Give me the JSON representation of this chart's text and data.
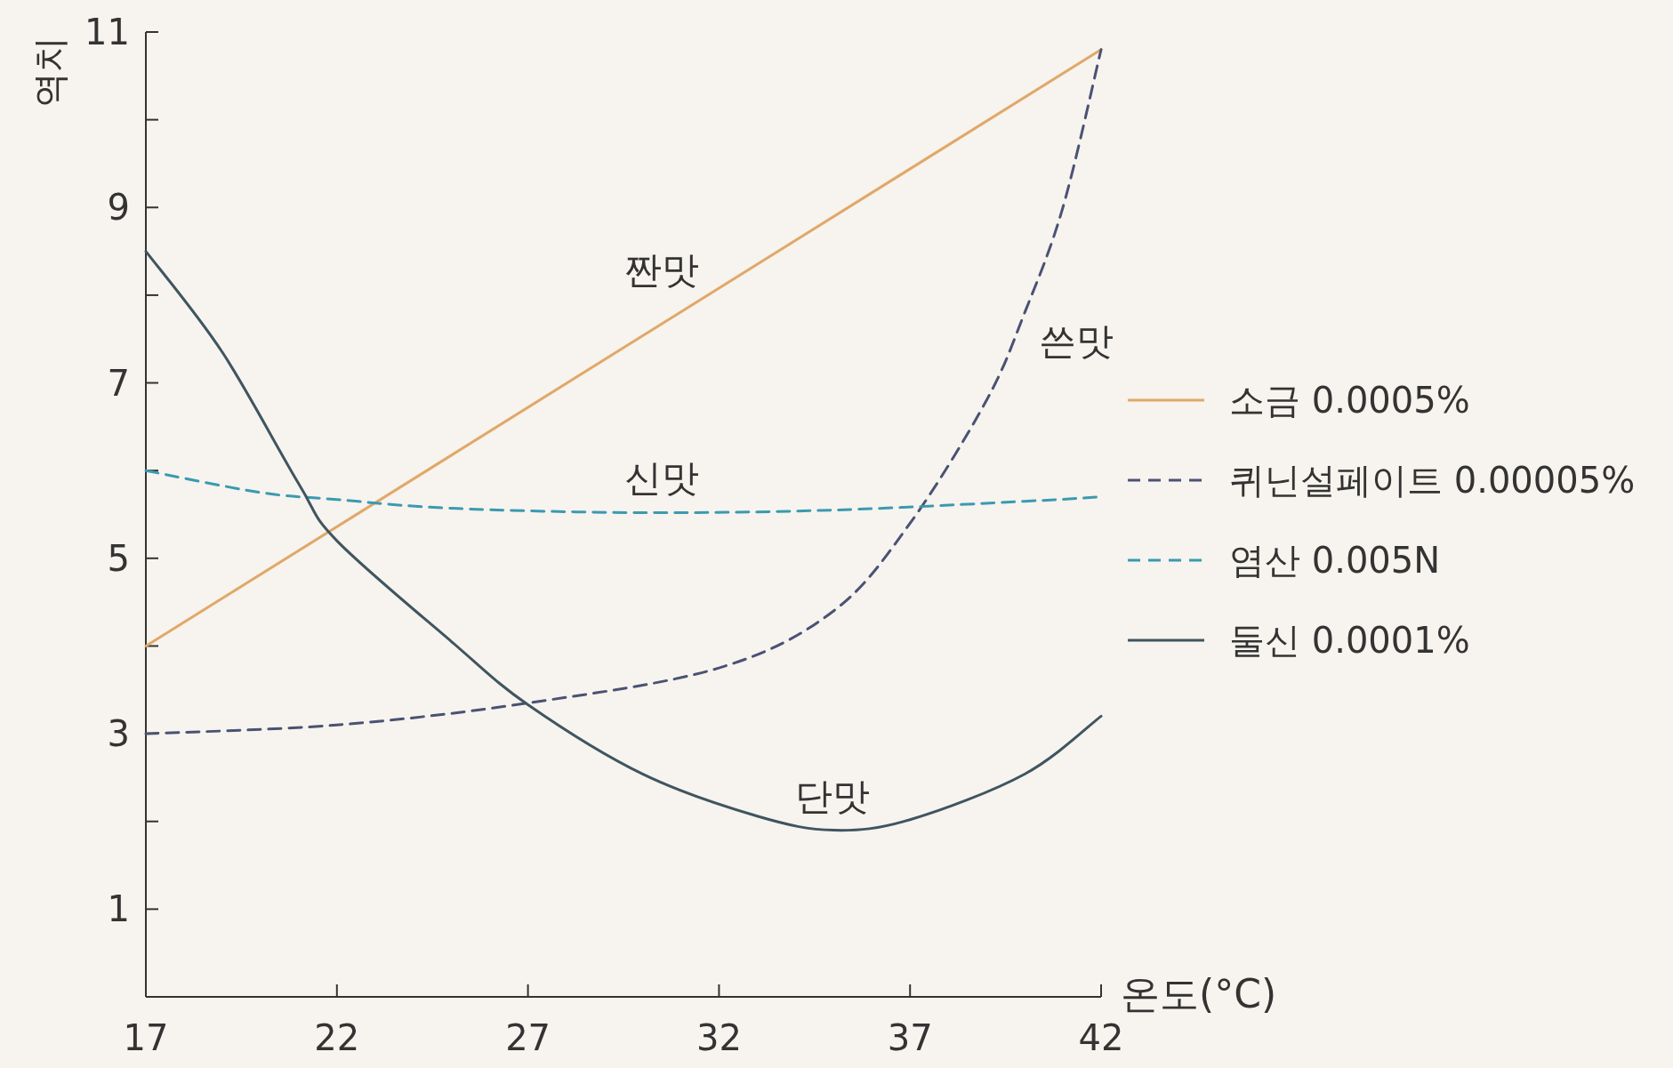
{
  "chart_data": {
    "type": "line",
    "xlabel": "온도(°C)",
    "ylabel": "역치",
    "xlim": [
      17,
      42
    ],
    "xticks": [
      17,
      22,
      27,
      32,
      37,
      42
    ],
    "ylim": [
      0,
      11
    ],
    "yticks": [
      1,
      {
        "value": 2,
        "label": null
      },
      3,
      {
        "value": 4,
        "label": null
      },
      5,
      {
        "value": 6,
        "label": null
      },
      7,
      {
        "value": 8,
        "label": null
      },
      9,
      {
        "value": 10,
        "label": null
      },
      11
    ],
    "legend": "right",
    "grid": false,
    "marker": "none",
    "series": [
      {
        "name": "소금 0.0005%",
        "color": "#e0a868",
        "line_style": "solid",
        "x": [
          17,
          42
        ],
        "values": [
          4.0,
          10.8
        ]
      },
      {
        "name": "퀴닌설페이트 0.00005%",
        "color": "#4a5274",
        "line_style": "dashed",
        "x": [
          17,
          22,
          27,
          32,
          35,
          37,
          39,
          40,
          41,
          42
        ],
        "values": [
          3.0,
          3.1,
          3.35,
          3.75,
          4.4,
          5.4,
          6.8,
          7.8,
          9.0,
          10.8
        ]
      },
      {
        "name": "염산 0.005N",
        "color": "#3a9ab0",
        "line_style": "dashed",
        "x": [
          17,
          20,
          22,
          25,
          30,
          35,
          40,
          42
        ],
        "values": [
          6.0,
          5.75,
          5.67,
          5.57,
          5.52,
          5.55,
          5.65,
          5.7
        ]
      },
      {
        "name": "둘신 0.0001%",
        "color": "#3f5560",
        "line_style": "solid",
        "x": [
          17,
          19,
          21,
          22,
          25,
          27,
          30,
          33,
          35,
          37,
          40,
          42
        ],
        "values": [
          8.5,
          7.35,
          5.85,
          5.2,
          4.05,
          3.33,
          2.54,
          2.06,
          1.9,
          2.02,
          2.54,
          3.2
        ]
      }
    ],
    "annotations": [
      "짠맛",
      "쓴맛",
      "신맛",
      "단맛"
    ]
  }
}
